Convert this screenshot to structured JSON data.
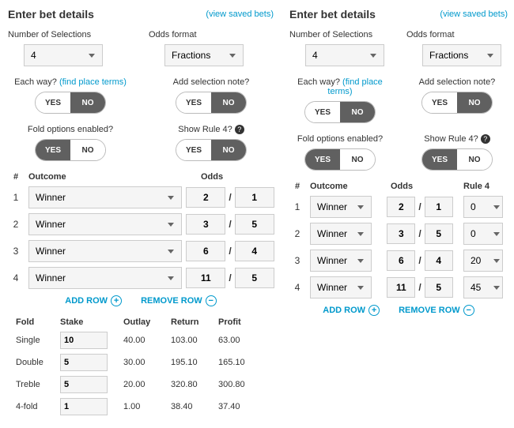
{
  "left": {
    "title": "Enter bet details",
    "savedLink": "(view saved bets)",
    "numSelLabel": "Number of Selections",
    "numSel": "4",
    "oddsFmtLabel": "Odds format",
    "oddsFmt": "Fractions",
    "eachWayLabel": "Each way?",
    "placeTerms": "(find place terms)",
    "noteLabel": "Add selection note?",
    "foldLabel": "Fold options enabled?",
    "rule4Label": "Show Rule 4?",
    "yes": "YES",
    "no": "NO",
    "eachWay": "NO",
    "note": "NO",
    "fold": "YES",
    "rule4": "NO",
    "th_n": "#",
    "th_out": "Outcome",
    "th_odds": "Odds",
    "rows": [
      {
        "n": "1",
        "out": "Winner",
        "a": "2",
        "b": "1"
      },
      {
        "n": "2",
        "out": "Winner",
        "a": "3",
        "b": "5"
      },
      {
        "n": "3",
        "out": "Winner",
        "a": "6",
        "b": "4"
      },
      {
        "n": "4",
        "out": "Winner",
        "a": "11",
        "b": "5"
      }
    ],
    "addRow": "ADD ROW",
    "removeRow": "REMOVE ROW",
    "res_h": {
      "f": "Fold",
      "s": "Stake",
      "o": "Outlay",
      "r": "Return",
      "p": "Profit"
    },
    "res": [
      {
        "f": "Single",
        "s": "10",
        "o": "40.00",
        "r": "103.00",
        "p": "63.00"
      },
      {
        "f": "Double",
        "s": "5",
        "o": "30.00",
        "r": "195.10",
        "p": "165.10"
      },
      {
        "f": "Treble",
        "s": "5",
        "o": "20.00",
        "r": "320.80",
        "p": "300.80"
      },
      {
        "f": "4-fold",
        "s": "1",
        "o": "1.00",
        "r": "38.40",
        "p": "37.40"
      }
    ]
  },
  "right": {
    "title": "Enter bet details",
    "savedLink": "(view saved bets)",
    "numSelLabel": "Number of Selections",
    "numSel": "4",
    "oddsFmtLabel": "Odds format",
    "oddsFmt": "Fractions",
    "eachWayLabel": "Each way?",
    "placeTerms": "(find place terms)",
    "noteLabel": "Add selection note?",
    "foldLabel": "Fold options enabled?",
    "rule4Label": "Show Rule 4?",
    "yes": "YES",
    "no": "NO",
    "eachWay": "NO",
    "note": "NO",
    "fold": "YES",
    "rule4": "YES",
    "th_n": "#",
    "th_out": "Outcome",
    "th_odds": "Odds",
    "th_r4": "Rule 4",
    "rows": [
      {
        "n": "1",
        "out": "Winner",
        "a": "2",
        "b": "1",
        "r4": "0"
      },
      {
        "n": "2",
        "out": "Winner",
        "a": "3",
        "b": "5",
        "r4": "0"
      },
      {
        "n": "3",
        "out": "Winner",
        "a": "6",
        "b": "4",
        "r4": "20"
      },
      {
        "n": "4",
        "out": "Winner",
        "a": "11",
        "b": "5",
        "r4": "45"
      }
    ],
    "addRow": "ADD ROW",
    "removeRow": "REMOVE ROW"
  }
}
